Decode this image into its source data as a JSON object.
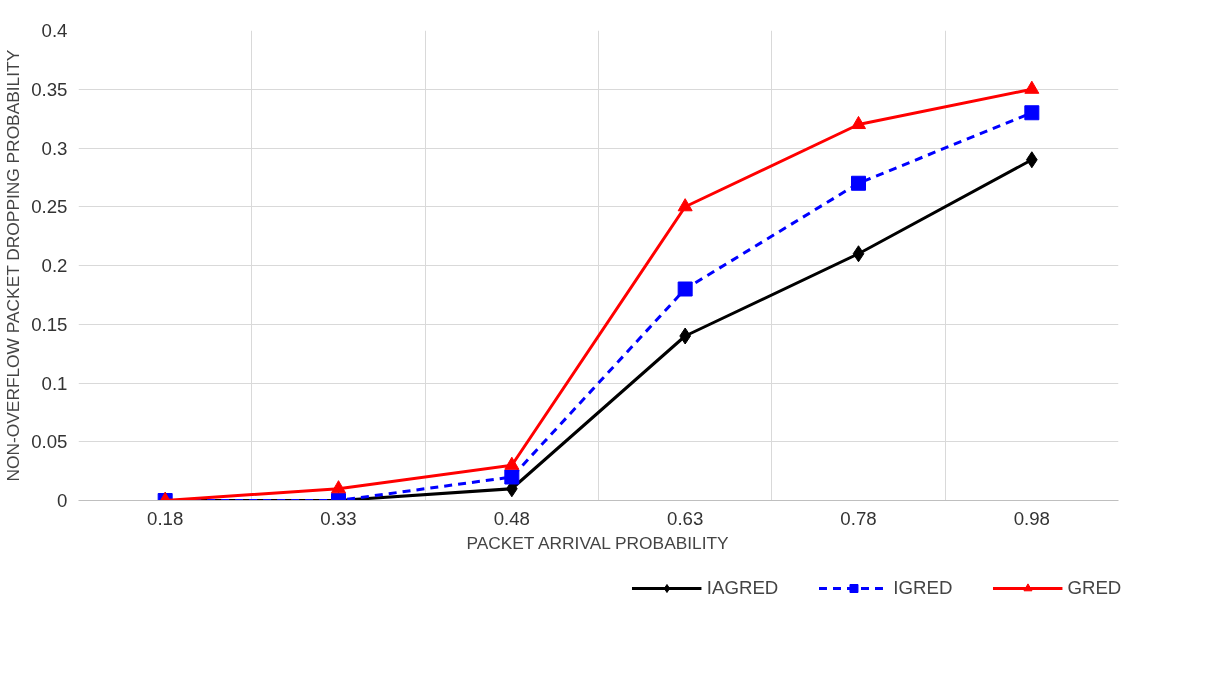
{
  "chart_data": {
    "type": "line",
    "xlabel": "PACKET ARRIVAL PROBABILITY",
    "ylabel": "NON-OVERFLOW PACKET DROPPING PROBABILITY",
    "categories": [
      "0.18",
      "0.33",
      "0.48",
      "0.63",
      "0.78",
      "0.98"
    ],
    "series": [
      {
        "name": "IAGRED",
        "color": "#000000",
        "marker": "diamond",
        "line_style": "solid",
        "values": [
          0,
          0,
          0.01,
          0.14,
          0.21,
          0.29
        ]
      },
      {
        "name": "IGRED",
        "color": "#0000ff",
        "marker": "square",
        "line_style": "dashed",
        "values": [
          0,
          0,
          0.02,
          0.18,
          0.27,
          0.33
        ]
      },
      {
        "name": "GRED",
        "color": "#ff0000",
        "marker": "triangle",
        "line_style": "solid",
        "values": [
          0,
          0.01,
          0.03,
          0.25,
          0.32,
          0.35
        ]
      }
    ],
    "ylim": [
      0,
      0.4
    ],
    "yticks": [
      0,
      0.05,
      0.1,
      0.15,
      0.2,
      0.25,
      0.3,
      0.35,
      0.4
    ],
    "grid": true,
    "legend": "bottom"
  }
}
